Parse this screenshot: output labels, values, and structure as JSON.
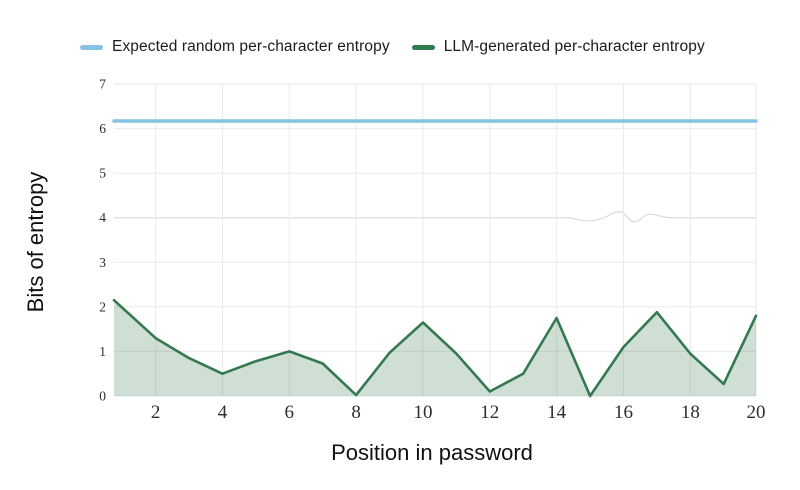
{
  "legend": {
    "items": [
      {
        "label": "Expected random per-character entropy",
        "color": "#86c3e2"
      },
      {
        "label": "LLM-generated per-character entropy",
        "color": "#2e7d4e"
      }
    ]
  },
  "chart_data": {
    "type": "line",
    "title": "",
    "xlabel": "Position in password",
    "ylabel": "Bits of entropy",
    "x": [
      1,
      2,
      3,
      4,
      5,
      6,
      7,
      8,
      9,
      10,
      11,
      12,
      13,
      14,
      15,
      16,
      17,
      18,
      19,
      20
    ],
    "series": [
      {
        "name": "Expected random per-character entropy",
        "style": "horizontal-line",
        "value": 6.17,
        "color": "#86c3e2"
      },
      {
        "name": "LLM-generated per-character entropy",
        "style": "area-line",
        "color": "#35794f",
        "fill": "rgba(53,121,79,0.24)",
        "values": [
          2.15,
          1.3,
          0.85,
          0.5,
          0.78,
          1.0,
          0.73,
          0.02,
          0.97,
          1.65,
          0.95,
          0.1,
          0.5,
          1.75,
          0.0,
          1.1,
          1.88,
          0.95,
          0.27,
          1.8
        ]
      }
    ],
    "x_ticks": [
      2,
      4,
      6,
      8,
      10,
      12,
      14,
      16,
      18,
      20
    ],
    "y_ticks": [
      0,
      1,
      2,
      3,
      4,
      5,
      6,
      7
    ],
    "xlim": [
      0.75,
      20.05
    ],
    "ylim": [
      0,
      7
    ],
    "grid": true,
    "grid_color": "#eaeaea",
    "grid_artifact_color": "#dcdcdc",
    "legend_position": "top"
  }
}
